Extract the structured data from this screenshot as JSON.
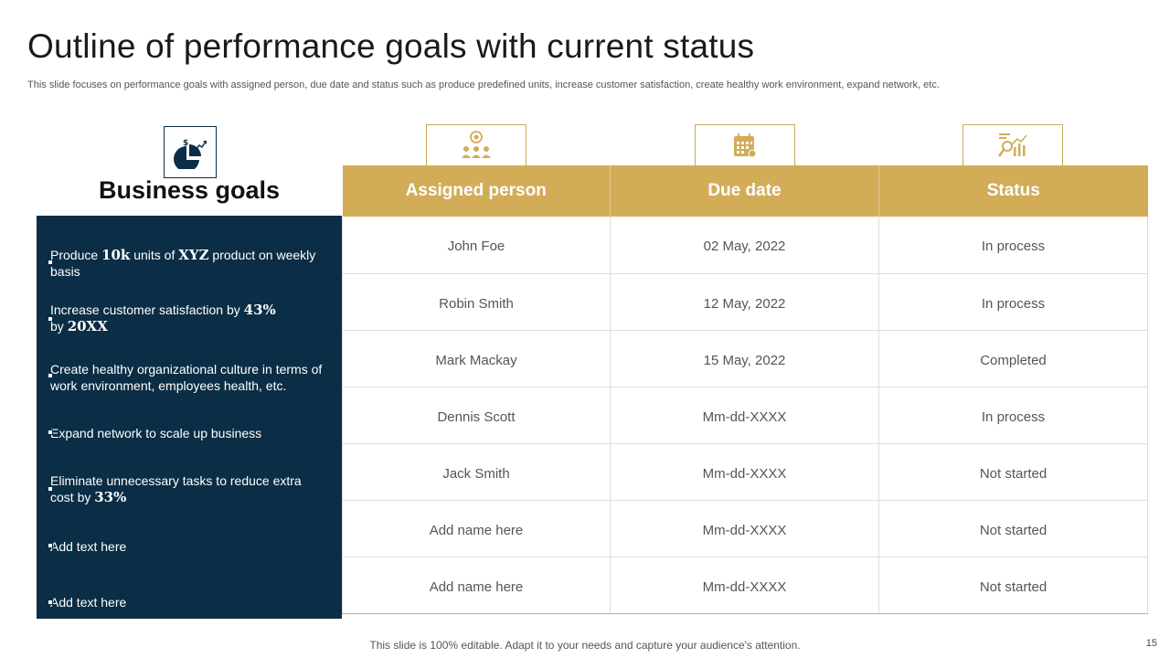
{
  "title": "Outline of performance goals with current status",
  "subtitle": "This slide focuses on performance goals with assigned person, due date and status such as produce predefined units, increase customer satisfaction, create healthy work environment, expand network, etc.",
  "goals": {
    "heading": "Business goals",
    "icon": "pie-chart-dollar-icon",
    "items": [
      {
        "pre": "Produce ",
        "b1": "10k",
        "mid": " units of ",
        "b2": "XYZ",
        "post": " product on weekly basis"
      },
      {
        "pre": "Increase customer satisfaction by ",
        "b1": "43%",
        "mid": " by ",
        "b2": "20XX",
        "post": ""
      },
      {
        "pre": "Create healthy organizational culture in terms of work environment, employees health, etc.",
        "b1": "",
        "mid": "",
        "b2": "",
        "post": ""
      },
      {
        "pre": "Expand network to scale up business",
        "b1": "",
        "mid": "",
        "b2": "",
        "post": ""
      },
      {
        "pre": "Eliminate unnecessary tasks to reduce extra cost by ",
        "b1": "33%",
        "mid": "",
        "b2": "",
        "post": ""
      },
      {
        "pre": "Add text here",
        "b1": "",
        "mid": "",
        "b2": "",
        "post": ""
      },
      {
        "pre": "Add text here",
        "b1": "",
        "mid": "",
        "b2": "",
        "post": ""
      }
    ]
  },
  "table": {
    "headers": [
      "Assigned person",
      "Due date",
      "Status"
    ],
    "header_icons": [
      "team-target-icon",
      "calendar-icon",
      "analytics-chart-icon"
    ],
    "rows": [
      [
        "John Foe",
        "02 May, 2022",
        "In process"
      ],
      [
        "Robin Smith",
        "12 May, 2022",
        "In process"
      ],
      [
        "Mark Mackay",
        "15 May, 2022",
        "Completed"
      ],
      [
        "Dennis Scott",
        "Mm-dd-XXXX",
        "In process"
      ],
      [
        "Jack Smith",
        "Mm-dd-XXXX",
        "Not started"
      ],
      [
        "Add name here",
        "Mm-dd-XXXX",
        "Not started"
      ],
      [
        "Add name here",
        "Mm-dd-XXXX",
        "Not started"
      ]
    ]
  },
  "footer": "This slide is 100% editable. Adapt it to your needs and capture your audience's attention.",
  "page_number": "15",
  "colors": {
    "navy": "#0b2d45",
    "gold": "#d3ac58"
  }
}
